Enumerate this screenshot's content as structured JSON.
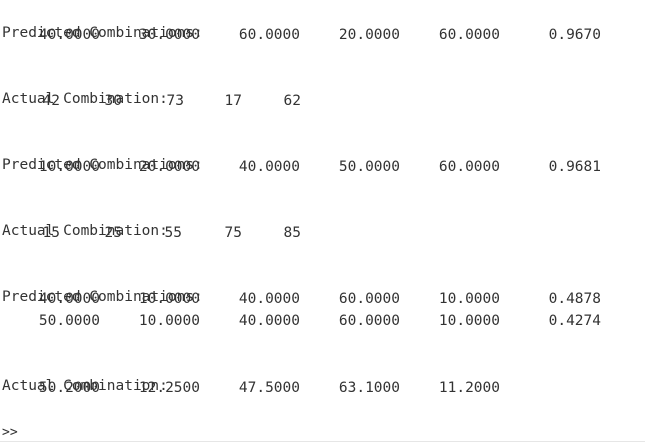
{
  "blocks": [
    {
      "heading": "Predicted Combinations:",
      "rows": [
        [
          "40.0000",
          "30.0000",
          "60.0000",
          "20.0000",
          "60.0000",
          "0.9670"
        ]
      ]
    },
    {
      "heading": "Actual Combination:",
      "rows": [
        [
          "42",
          "30",
          "73",
          "17",
          "62"
        ]
      ]
    },
    {
      "heading": "Predicted Combinations:",
      "rows": [
        [
          "10.0000",
          "20.0000",
          "40.0000",
          "50.0000",
          "60.0000",
          "0.9681"
        ]
      ]
    },
    {
      "heading": "Actual Combination:",
      "rows": [
        [
          "15",
          "25",
          "55",
          "75",
          "85"
        ]
      ]
    },
    {
      "heading": "Predicted Combinations:",
      "rows": [
        [
          "40.0000",
          "10.0000",
          "40.0000",
          "60.0000",
          "10.0000",
          "0.4878"
        ],
        [
          "50.0000",
          "10.0000",
          "40.0000",
          "60.0000",
          "10.0000",
          "0.4274"
        ]
      ]
    },
    {
      "heading": "Actual Combination:",
      "rows": [
        [
          "50.2000",
          "12.2500",
          "47.5000",
          "63.1000",
          "11.2000"
        ]
      ]
    }
  ],
  "prompt": ">>"
}
